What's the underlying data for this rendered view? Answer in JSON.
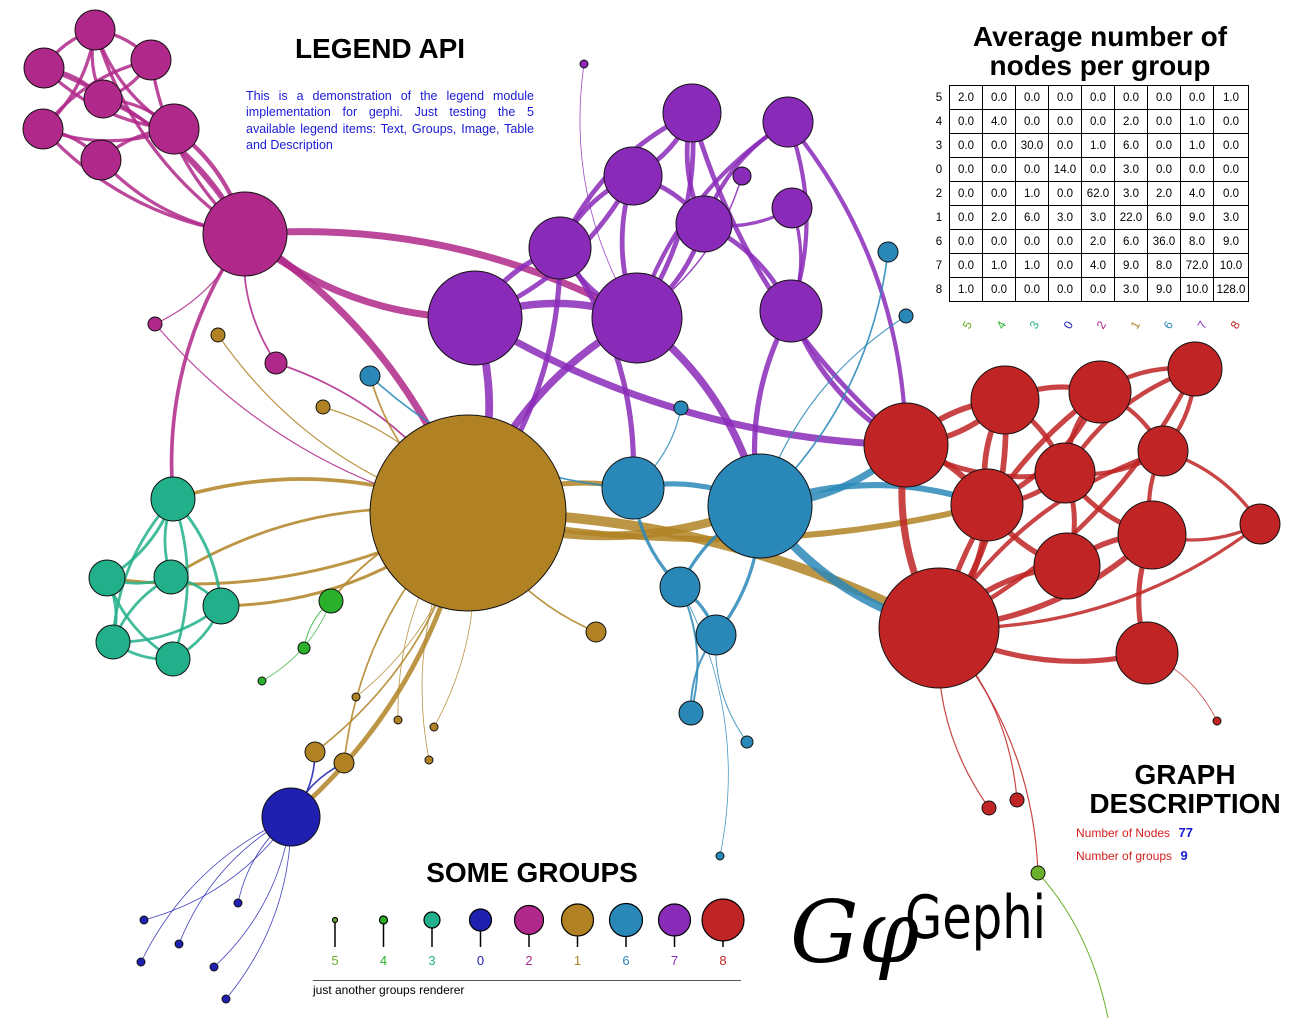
{
  "legend": {
    "title": "LEGEND API",
    "description": "This is a demonstration of the legend module implementation for gephi. Just testing the 5 available legend items: Text, Groups, Image, Table and Description"
  },
  "table": {
    "title_line1": "Average number of",
    "title_line2": "nodes per group",
    "row_labels": [
      "5",
      "4",
      "3",
      "0",
      "2",
      "1",
      "6",
      "7",
      "8"
    ],
    "column_labels": [
      "5",
      "4",
      "3",
      "0",
      "2",
      "1",
      "6",
      "7",
      "8"
    ],
    "column_colors": [
      "#6ab02a",
      "#2bb02b",
      "#22b08a",
      "#2020b0",
      "#b0288a",
      "#b08224",
      "#2a88b8",
      "#8a2ab8",
      "#c02424"
    ],
    "rows": [
      [
        "2.0",
        "0.0",
        "0.0",
        "0.0",
        "0.0",
        "0.0",
        "0.0",
        "0.0",
        "1.0"
      ],
      [
        "0.0",
        "4.0",
        "0.0",
        "0.0",
        "0.0",
        "2.0",
        "0.0",
        "1.0",
        "0.0"
      ],
      [
        "0.0",
        "0.0",
        "30.0",
        "0.0",
        "1.0",
        "6.0",
        "0.0",
        "1.0",
        "0.0"
      ],
      [
        "0.0",
        "0.0",
        "0.0",
        "14.0",
        "0.0",
        "3.0",
        "0.0",
        "0.0",
        "0.0"
      ],
      [
        "0.0",
        "0.0",
        "1.0",
        "0.0",
        "62.0",
        "3.0",
        "2.0",
        "4.0",
        "0.0"
      ],
      [
        "0.0",
        "2.0",
        "6.0",
        "3.0",
        "3.0",
        "22.0",
        "6.0",
        "9.0",
        "3.0"
      ],
      [
        "0.0",
        "0.0",
        "0.0",
        "0.0",
        "2.0",
        "6.0",
        "36.0",
        "8.0",
        "9.0"
      ],
      [
        "0.0",
        "1.0",
        "1.0",
        "0.0",
        "4.0",
        "9.0",
        "8.0",
        "72.0",
        "10.0"
      ],
      [
        "1.0",
        "0.0",
        "0.0",
        "0.0",
        "0.0",
        "3.0",
        "9.0",
        "10.0",
        "128.0"
      ]
    ]
  },
  "graph_description": {
    "title_line1": "GRAPH",
    "title_line2": "DESCRIPTION",
    "items": [
      {
        "key": "Number of Nodes",
        "value": "77"
      },
      {
        "key": "Number of groups",
        "value": "9"
      }
    ]
  },
  "groups": {
    "title": "SOME GROUPS",
    "caption": "just another groups renderer",
    "items": [
      {
        "label": "5",
        "color": "#6ab02a"
      },
      {
        "label": "4",
        "color": "#2bb02b"
      },
      {
        "label": "3",
        "color": "#22b08a"
      },
      {
        "label": "0",
        "color": "#2020b0"
      },
      {
        "label": "2",
        "color": "#b0288a"
      },
      {
        "label": "1",
        "color": "#b08224"
      },
      {
        "label": "6",
        "color": "#2a88b8"
      },
      {
        "label": "7",
        "color": "#8a2ab8"
      },
      {
        "label": "8",
        "color": "#c02424"
      }
    ]
  },
  "logo": {
    "text": "Gephi",
    "monogram": "Gφ"
  },
  "colors": {
    "group_5": "#6ab02a",
    "group_4": "#2bb02b",
    "group_3": "#22b08a",
    "group_0": "#2020b0",
    "group_2": "#b0288a",
    "group_1": "#b08224",
    "group_6": "#2a88b8",
    "group_7": "#8a2ab8",
    "group_8": "#c02424"
  }
}
